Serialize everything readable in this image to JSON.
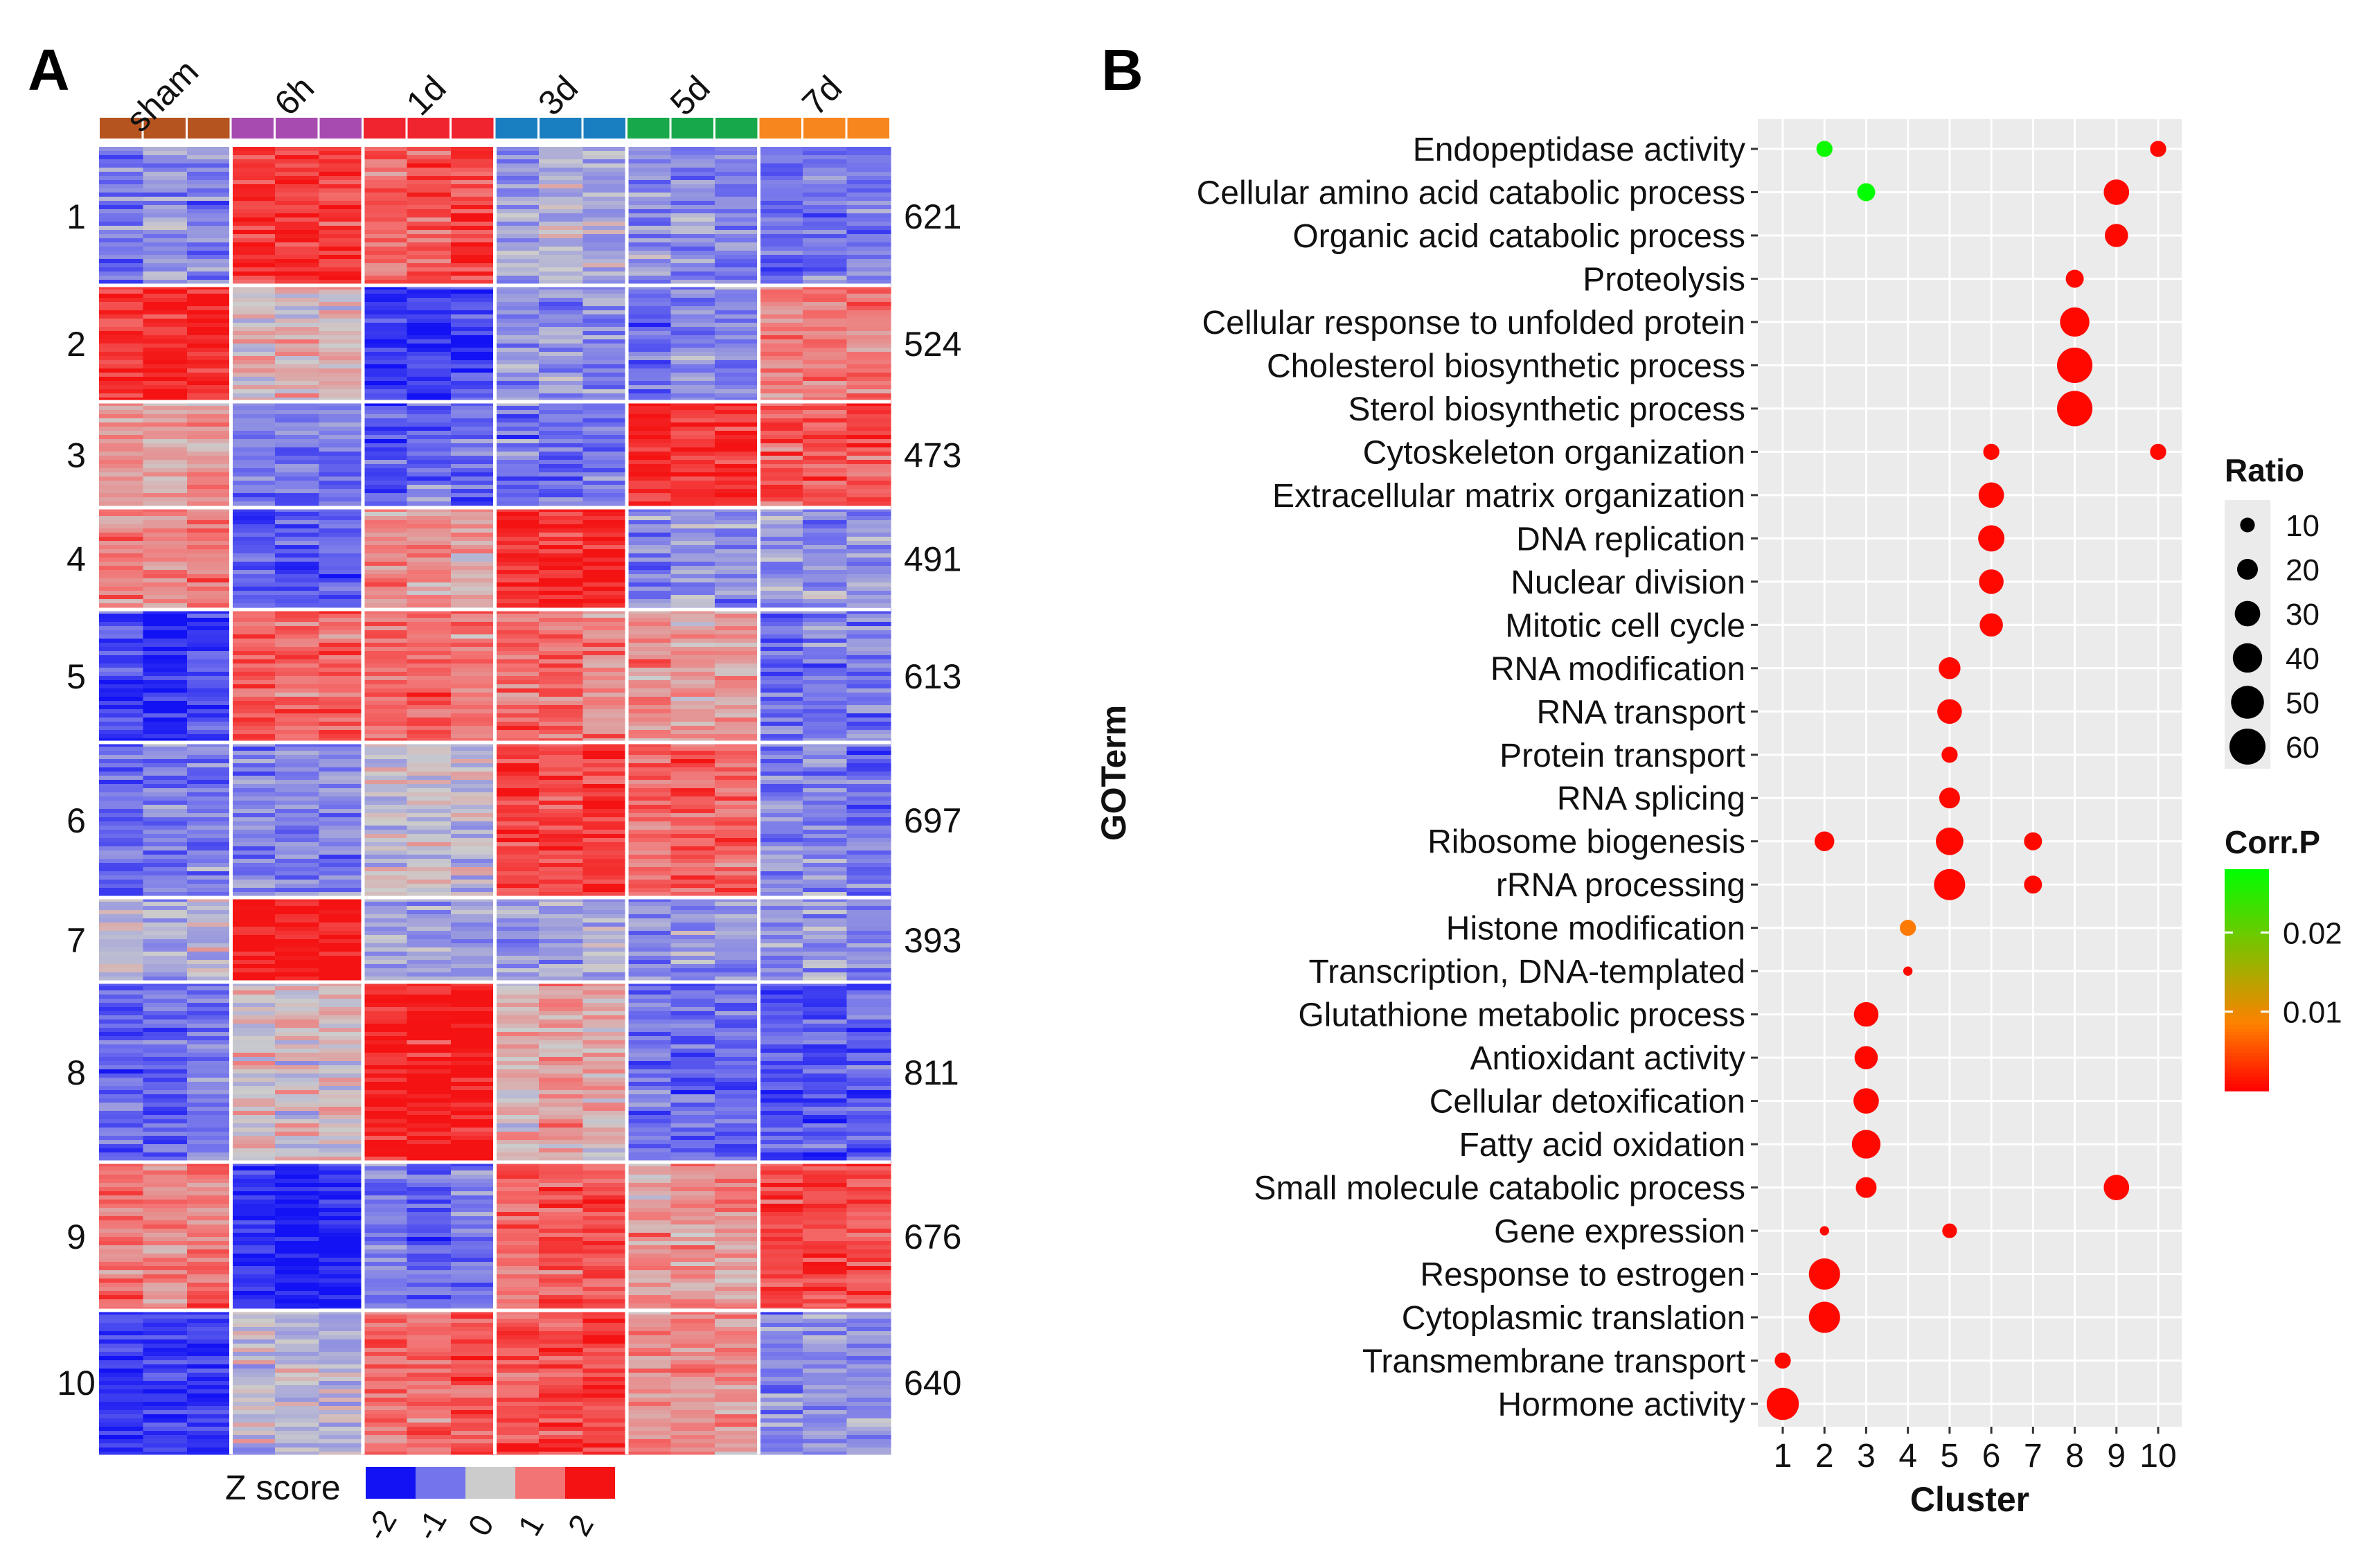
{
  "chart_data": [
    {
      "type": "heatmap",
      "panel_label": "A",
      "columns": [
        "sham",
        "6h",
        "1d",
        "3d",
        "5d",
        "7d"
      ],
      "column_colors": [
        "#b5541f",
        "#a74bb0",
        "#f0242f",
        "#1a7fc0",
        "#16a84a",
        "#f7861e"
      ],
      "replicates_per_group": 3,
      "clusters": [
        "1",
        "2",
        "3",
        "4",
        "5",
        "6",
        "7",
        "8",
        "9",
        "10"
      ],
      "cluster_gene_counts": [
        621,
        524,
        473,
        491,
        613,
        697,
        393,
        811,
        676,
        640
      ],
      "mean_zscore_matrix": [
        [
          -0.8,
          1.7,
          1.3,
          -0.3,
          -0.8,
          -1.0
        ],
        [
          1.7,
          0.3,
          -1.5,
          -0.6,
          -0.9,
          0.9
        ],
        [
          0.5,
          -1.0,
          -1.2,
          -1.0,
          1.7,
          1.4
        ],
        [
          0.9,
          -1.3,
          0.6,
          1.8,
          -0.7,
          -0.6
        ],
        [
          -1.6,
          1.3,
          1.0,
          0.9,
          0.6,
          -1.0
        ],
        [
          -0.9,
          -0.7,
          -0.1,
          1.6,
          1.2,
          -0.9
        ],
        [
          -0.2,
          2.0,
          -0.4,
          -0.5,
          -0.6,
          -0.7
        ],
        [
          -1.1,
          0.1,
          1.9,
          0.4,
          -1.0,
          -1.2
        ],
        [
          1.0,
          -1.8,
          -1.0,
          1.3,
          0.7,
          1.5
        ],
        [
          -1.5,
          -0.3,
          1.2,
          1.6,
          0.7,
          -0.8
        ]
      ],
      "colorbar_title": "Z score",
      "colorbar_ticks": [
        "-2",
        "-1",
        "0",
        "1",
        "2"
      ],
      "colorbar_colors": [
        "#1212f4",
        "#7474ec",
        "#cccccc",
        "#f37474",
        "#f41212"
      ]
    },
    {
      "type": "scatter",
      "panel_label": "B",
      "title": "",
      "xlabel": "Cluster",
      "ylabel": "GOTerm",
      "x_ticks": [
        "1",
        "2",
        "3",
        "4",
        "5",
        "6",
        "7",
        "8",
        "9",
        "10"
      ],
      "terms": [
        "Endopeptidase activity",
        "Cellular amino acid catabolic process",
        "Organic acid catabolic process",
        "Proteolysis",
        "Cellular response to unfolded protein",
        "Cholesterol biosynthetic process",
        "Sterol biosynthetic process",
        "Cytoskeleton organization",
        "Extracellular matrix organization",
        "DNA replication",
        "Nuclear division",
        "Mitotic cell cycle",
        "RNA modification",
        "RNA transport",
        "Protein transport",
        "RNA splicing",
        "Ribosome biogenesis",
        "rRNA processing",
        "Histone modification",
        "Transcription, DNA-templated",
        "Glutathione metabolic process",
        "Antioxidant activity",
        "Cellular detoxification",
        "Fatty acid oxidation",
        "Small molecule catabolic process",
        "Gene expression",
        "Response to estrogen",
        "Cytoplasmic translation",
        "Transmembrane transport",
        "Hormone activity"
      ],
      "points": [
        {
          "term": "Endopeptidase activity",
          "cluster": 2,
          "ratio": 12,
          "corr_p": 0.027
        },
        {
          "term": "Endopeptidase activity",
          "cluster": 10,
          "ratio": 12,
          "corr_p": 0.0005
        },
        {
          "term": "Cellular amino acid catabolic process",
          "cluster": 3,
          "ratio": 15,
          "corr_p": 0.029
        },
        {
          "term": "Cellular amino acid catabolic process",
          "cluster": 9,
          "ratio": 30,
          "corr_p": 0.0005
        },
        {
          "term": "Organic acid catabolic process",
          "cluster": 9,
          "ratio": 25,
          "corr_p": 0.0005
        },
        {
          "term": "Proteolysis",
          "cluster": 8,
          "ratio": 15,
          "corr_p": 0.0005
        },
        {
          "term": "Cellular response to unfolded protein",
          "cluster": 8,
          "ratio": 40,
          "corr_p": 0.0005
        },
        {
          "term": "Cholesterol biosynthetic process",
          "cluster": 8,
          "ratio": 58,
          "corr_p": 0.0005
        },
        {
          "term": "Sterol biosynthetic process",
          "cluster": 8,
          "ratio": 58,
          "corr_p": 0.0005
        },
        {
          "term": "Cytoskeleton organization",
          "cluster": 6,
          "ratio": 12,
          "corr_p": 0.0005
        },
        {
          "term": "Cytoskeleton organization",
          "cluster": 10,
          "ratio": 12,
          "corr_p": 0.0005
        },
        {
          "term": "Extracellular matrix organization",
          "cluster": 6,
          "ratio": 30,
          "corr_p": 0.0005
        },
        {
          "term": "DNA replication",
          "cluster": 6,
          "ratio": 32,
          "corr_p": 0.0005
        },
        {
          "term": "Nuclear division",
          "cluster": 6,
          "ratio": 28,
          "corr_p": 0.0005
        },
        {
          "term": "Mitotic cell cycle",
          "cluster": 6,
          "ratio": 25,
          "corr_p": 0.0005
        },
        {
          "term": "RNA modification",
          "cluster": 5,
          "ratio": 22,
          "corr_p": 0.0005
        },
        {
          "term": "RNA transport",
          "cluster": 5,
          "ratio": 28,
          "corr_p": 0.0005
        },
        {
          "term": "Protein transport",
          "cluster": 5,
          "ratio": 12,
          "corr_p": 0.0005
        },
        {
          "term": "RNA splicing",
          "cluster": 5,
          "ratio": 20,
          "corr_p": 0.0005
        },
        {
          "term": "Ribosome biogenesis",
          "cluster": 2,
          "ratio": 18,
          "corr_p": 0.0005
        },
        {
          "term": "Ribosome biogenesis",
          "cluster": 5,
          "ratio": 35,
          "corr_p": 0.0005
        },
        {
          "term": "Ribosome biogenesis",
          "cluster": 7,
          "ratio": 15,
          "corr_p": 0.0005
        },
        {
          "term": "rRNA processing",
          "cluster": 5,
          "ratio": 45,
          "corr_p": 0.0005
        },
        {
          "term": "rRNA processing",
          "cluster": 7,
          "ratio": 15,
          "corr_p": 0.0005
        },
        {
          "term": "Histone modification",
          "cluster": 4,
          "ratio": 12,
          "corr_p": 0.008
        },
        {
          "term": "Transcription, DNA-templated",
          "cluster": 4,
          "ratio": 4,
          "corr_p": 0.0005
        },
        {
          "term": "Glutathione metabolic process",
          "cluster": 3,
          "ratio": 28,
          "corr_p": 0.0005
        },
        {
          "term": "Antioxidant activity",
          "cluster": 3,
          "ratio": 25,
          "corr_p": 0.0005
        },
        {
          "term": "Cellular detoxification",
          "cluster": 3,
          "ratio": 30,
          "corr_p": 0.0005
        },
        {
          "term": "Fatty acid oxidation",
          "cluster": 3,
          "ratio": 38,
          "corr_p": 0.0005
        },
        {
          "term": "Small molecule catabolic process",
          "cluster": 3,
          "ratio": 20,
          "corr_p": 0.0005
        },
        {
          "term": "Small molecule catabolic process",
          "cluster": 9,
          "ratio": 30,
          "corr_p": 0.0005
        },
        {
          "term": "Gene expression",
          "cluster": 2,
          "ratio": 4,
          "corr_p": 0.0005
        },
        {
          "term": "Gene expression",
          "cluster": 5,
          "ratio": 10,
          "corr_p": 0.0005
        },
        {
          "term": "Response to estrogen",
          "cluster": 2,
          "ratio": 45,
          "corr_p": 0.0005
        },
        {
          "term": "Cytoplasmic translation",
          "cluster": 2,
          "ratio": 45,
          "corr_p": 0.0005
        },
        {
          "term": "Transmembrane transport",
          "cluster": 1,
          "ratio": 12,
          "corr_p": 0.0005
        },
        {
          "term": "Hormone activity",
          "cluster": 1,
          "ratio": 48,
          "corr_p": 0.0005
        }
      ],
      "size_legend": {
        "title": "Ratio",
        "values": [
          10,
          20,
          30,
          40,
          50,
          60
        ]
      },
      "color_legend": {
        "title": "Corr.P",
        "range": [
          0,
          0.028
        ],
        "ticks": [
          0.01,
          0.02
        ],
        "tick_labels": [
          "0.01",
          "0.02"
        ],
        "colors": [
          "#ff0000",
          "#ff8000",
          "#00ff00"
        ]
      }
    }
  ]
}
